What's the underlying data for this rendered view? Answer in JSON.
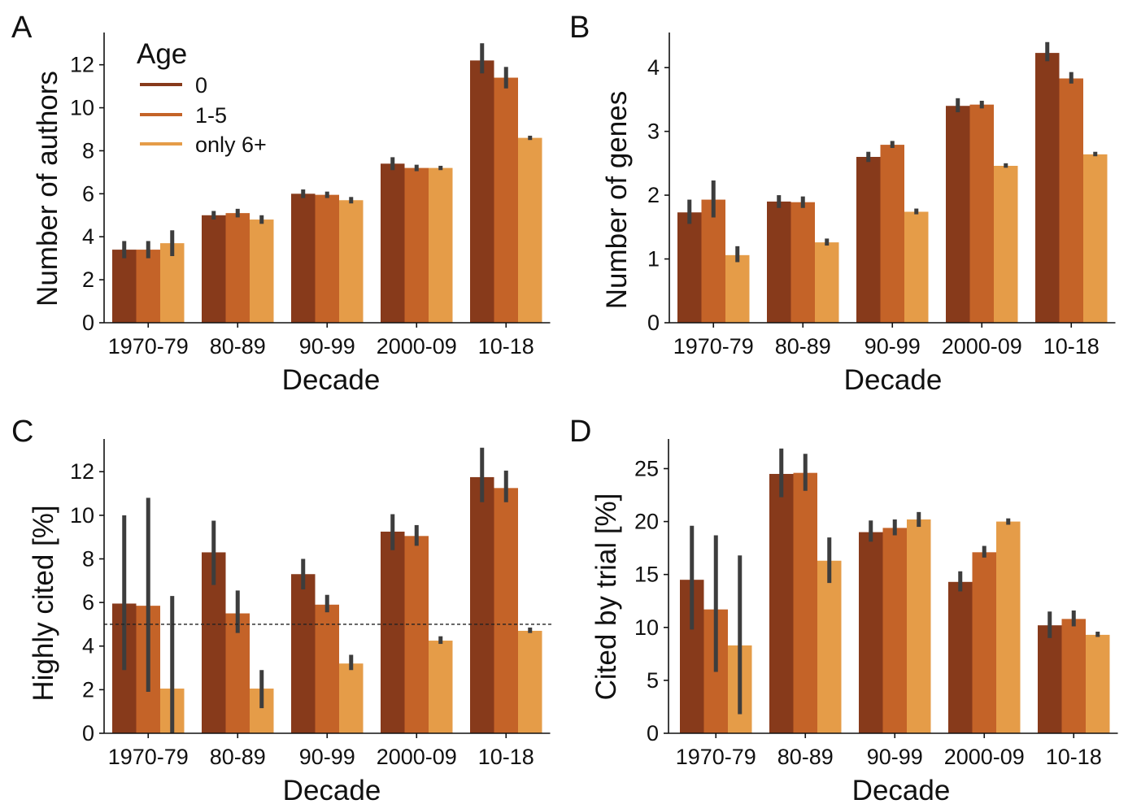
{
  "colors": {
    "age_0": "#873a1b",
    "age_1_5": "#c46328",
    "age_6_plus": "#e59c48",
    "error_bar": "#3d3d3d",
    "axis": "#111111",
    "reference_line": "#222222"
  },
  "legend": {
    "title": "Age",
    "entries": [
      "0",
      "1-5",
      "only 6+"
    ],
    "location": "upper-left of panel A"
  },
  "chart_data": [
    {
      "panel": "A",
      "type": "bar",
      "xlabel": "Decade",
      "ylabel": "Number of authors",
      "ylim": [
        0,
        13.5
      ],
      "yticks": [
        0,
        2,
        4,
        6,
        8,
        10,
        12
      ],
      "categories": [
        "1970-79",
        "80-89",
        "90-99",
        "2000-09",
        "10-18"
      ],
      "series": [
        {
          "name": "0",
          "values": [
            3.4,
            5.0,
            6.0,
            7.4,
            12.2
          ],
          "err_low": [
            3.0,
            4.8,
            5.8,
            7.1,
            11.6
          ],
          "err_high": [
            3.8,
            5.2,
            6.2,
            7.7,
            13.0
          ]
        },
        {
          "name": "1-5",
          "values": [
            3.4,
            5.1,
            5.95,
            7.2,
            11.4
          ],
          "err_low": [
            3.0,
            4.9,
            5.8,
            7.05,
            10.9
          ],
          "err_high": [
            3.8,
            5.3,
            6.1,
            7.35,
            11.9
          ]
        },
        {
          "name": "only 6+",
          "values": [
            3.7,
            4.8,
            5.7,
            7.2,
            8.6
          ],
          "err_low": [
            3.1,
            4.6,
            5.55,
            7.1,
            8.5
          ],
          "err_high": [
            4.3,
            5.0,
            5.85,
            7.3,
            8.7
          ]
        }
      ],
      "grid": false
    },
    {
      "panel": "B",
      "type": "bar",
      "xlabel": "Decade",
      "ylabel": "Number of genes",
      "ylim": [
        0,
        4.55
      ],
      "yticks": [
        0,
        1,
        2,
        3,
        4
      ],
      "categories": [
        "1970-79",
        "80-89",
        "90-99",
        "2000-09",
        "10-18"
      ],
      "series": [
        {
          "name": "0",
          "values": [
            1.73,
            1.9,
            2.6,
            3.4,
            4.23
          ],
          "err_low": [
            1.55,
            1.8,
            2.52,
            3.3,
            4.1
          ],
          "err_high": [
            1.93,
            2.0,
            2.68,
            3.52,
            4.4
          ]
        },
        {
          "name": "1-5",
          "values": [
            1.93,
            1.89,
            2.79,
            3.42,
            3.83
          ],
          "err_low": [
            1.65,
            1.8,
            2.74,
            3.36,
            3.75
          ],
          "err_high": [
            2.23,
            1.98,
            2.85,
            3.48,
            3.93
          ]
        },
        {
          "name": "only 6+",
          "values": [
            1.06,
            1.26,
            1.74,
            2.46,
            2.64
          ],
          "err_low": [
            0.95,
            1.21,
            1.7,
            2.43,
            2.61
          ],
          "err_high": [
            1.2,
            1.32,
            1.79,
            2.5,
            2.68
          ]
        }
      ],
      "grid": false
    },
    {
      "panel": "C",
      "type": "bar",
      "xlabel": "Decade",
      "ylabel": "Highly cited [%]",
      "ylim": [
        0,
        13.5
      ],
      "yticks": [
        0,
        2,
        4,
        6,
        8,
        10,
        12
      ],
      "reference_line": 5,
      "categories": [
        "1970-79",
        "80-89",
        "90-99",
        "2000-09",
        "10-18"
      ],
      "series": [
        {
          "name": "0",
          "values": [
            5.95,
            8.3,
            7.3,
            9.25,
            11.75
          ],
          "err_low": [
            2.9,
            6.8,
            6.6,
            8.4,
            10.6
          ],
          "err_high": [
            10.0,
            9.75,
            8.0,
            10.05,
            13.1
          ]
        },
        {
          "name": "1-5",
          "values": [
            5.85,
            5.5,
            5.9,
            9.05,
            11.25
          ],
          "err_low": [
            1.9,
            4.6,
            5.55,
            8.6,
            10.6
          ],
          "err_high": [
            10.8,
            6.55,
            6.35,
            9.55,
            12.05
          ]
        },
        {
          "name": "only 6+",
          "values": [
            2.05,
            2.05,
            3.2,
            4.25,
            4.7
          ],
          "err_low": [
            0.0,
            1.15,
            2.9,
            4.1,
            4.6
          ],
          "err_high": [
            6.3,
            2.9,
            3.6,
            4.45,
            4.85
          ]
        }
      ],
      "grid": false
    },
    {
      "panel": "D",
      "type": "bar",
      "xlabel": "Decade",
      "ylabel": "Cited by trial [%]",
      "ylim": [
        0,
        27.8
      ],
      "yticks": [
        0,
        5,
        10,
        15,
        20,
        25
      ],
      "categories": [
        "1970-79",
        "80-89",
        "90-99",
        "2000-09",
        "10-18"
      ],
      "series": [
        {
          "name": "0",
          "values": [
            14.5,
            24.5,
            19.0,
            14.3,
            10.2
          ],
          "err_low": [
            9.8,
            22.3,
            18.1,
            13.4,
            9.0
          ],
          "err_high": [
            19.6,
            26.9,
            20.1,
            15.3,
            11.5
          ]
        },
        {
          "name": "1-5",
          "values": [
            11.7,
            24.6,
            19.4,
            17.1,
            10.8
          ],
          "err_low": [
            5.8,
            22.9,
            18.7,
            16.6,
            10.1
          ],
          "err_high": [
            18.7,
            26.4,
            20.2,
            17.7,
            11.6
          ]
        },
        {
          "name": "only 6+",
          "values": [
            8.3,
            16.3,
            20.2,
            20.0,
            9.3
          ],
          "err_low": [
            1.8,
            14.2,
            19.5,
            19.7,
            9.1
          ],
          "err_high": [
            16.8,
            18.5,
            20.9,
            20.3,
            9.6
          ]
        }
      ],
      "grid": false
    }
  ]
}
